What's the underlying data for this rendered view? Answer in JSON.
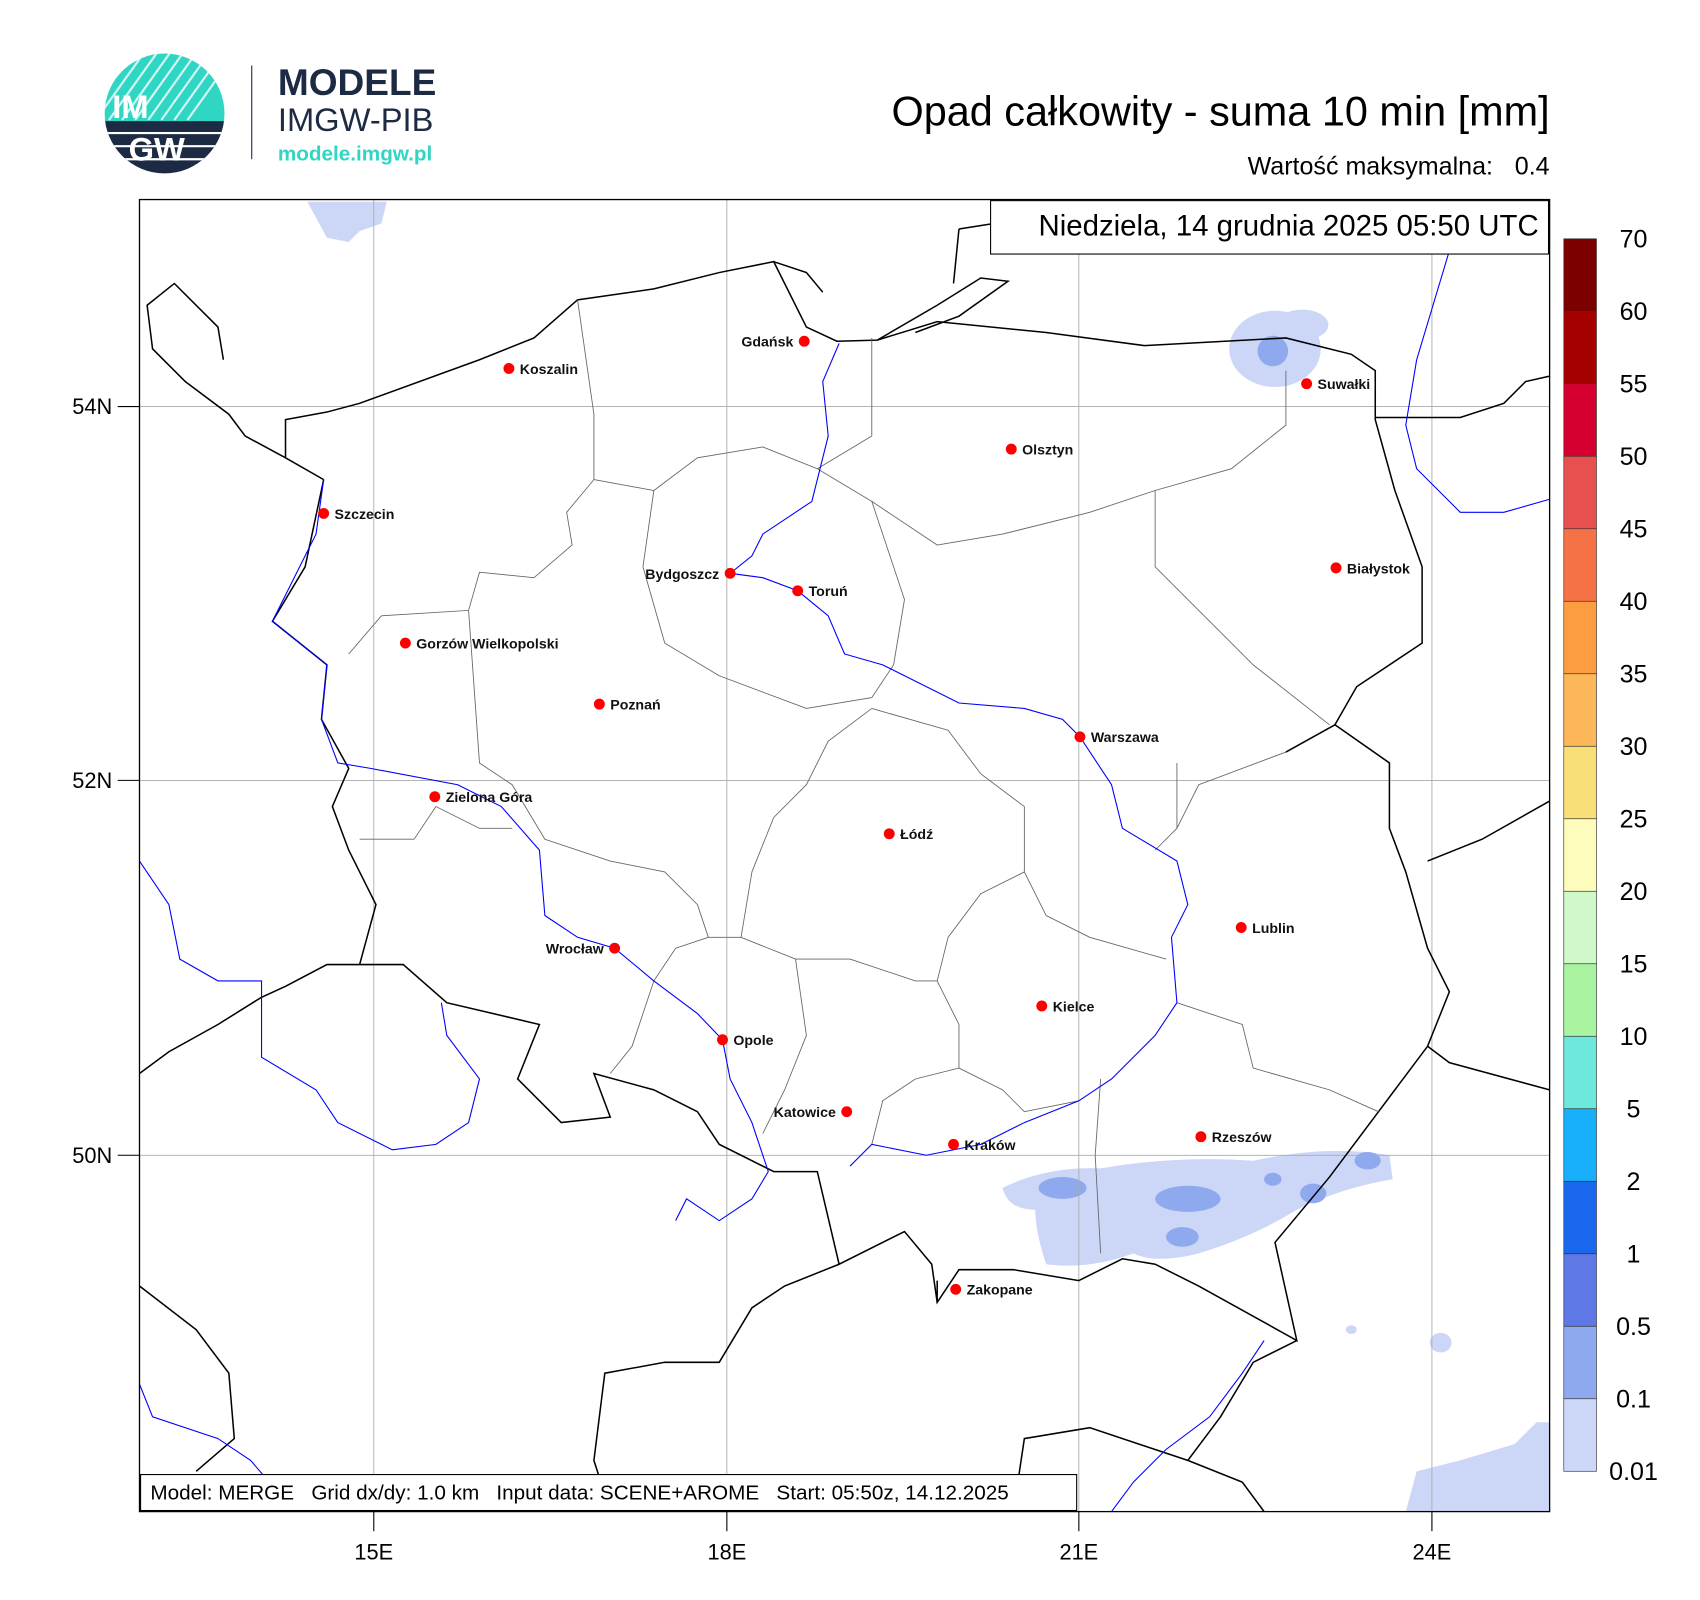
{
  "logo": {
    "mark_text": "IMGW",
    "title": "MODELE",
    "subtitle": "IMGW-PIB",
    "url": "modele.imgw.pl",
    "colors": {
      "navy": "#1d2a44",
      "teal": "#2fd6c3"
    }
  },
  "header": {
    "title": "Opad całkowity - suma 10 min [mm]",
    "max_label": "Wartość maksymalna:",
    "max_value": "0.4",
    "datetime": "Niedziela, 14 grudnia 2025 05:50 UTC"
  },
  "map": {
    "lat_labels": [
      "54N",
      "52N",
      "50N"
    ],
    "lon_labels": [
      "15E",
      "18E",
      "21E",
      "24E"
    ],
    "cities": [
      "Gdańsk",
      "Koszalin",
      "Szczecin",
      "Olsztyn",
      "Suwałki",
      "Bydgoszcz",
      "Toruń",
      "Białystok",
      "Gorzów Wielkopolski",
      "Poznań",
      "Warszawa",
      "Zielona Góra",
      "Łódź",
      "Lublin",
      "Wrocław",
      "Kielce",
      "Opole",
      "Katowice",
      "Kraków",
      "Rzeszów",
      "Zakopane"
    ],
    "city_marker_color": "#ff0000",
    "footer": "Model: MERGE   Grid dx/dy: 1.0 km   Input data: SCENE+AROME   Start: 05:50z, 14.12.2025"
  },
  "colorbar": {
    "labels": [
      "70",
      "60",
      "55",
      "50",
      "45",
      "40",
      "35",
      "30",
      "25",
      "20",
      "15",
      "10",
      "5",
      "2",
      "1",
      "0.5",
      "0.1",
      "0.01"
    ],
    "colors": [
      "#7d0000",
      "#a50000",
      "#d5002f",
      "#e8504f",
      "#f47245",
      "#fb9d40",
      "#fbb759",
      "#f9df78",
      "#fdfcbc",
      "#d0f8c9",
      "#a9f3a1",
      "#6ce8dc",
      "#18b0fb",
      "#1968ee",
      "#5e78e5",
      "#8fa9ef",
      "#ccd7f7"
    ]
  },
  "precip_colors": {
    "light": "#ccd7f7",
    "mid": "#8fa9ef",
    "high": "#5e78e5"
  }
}
